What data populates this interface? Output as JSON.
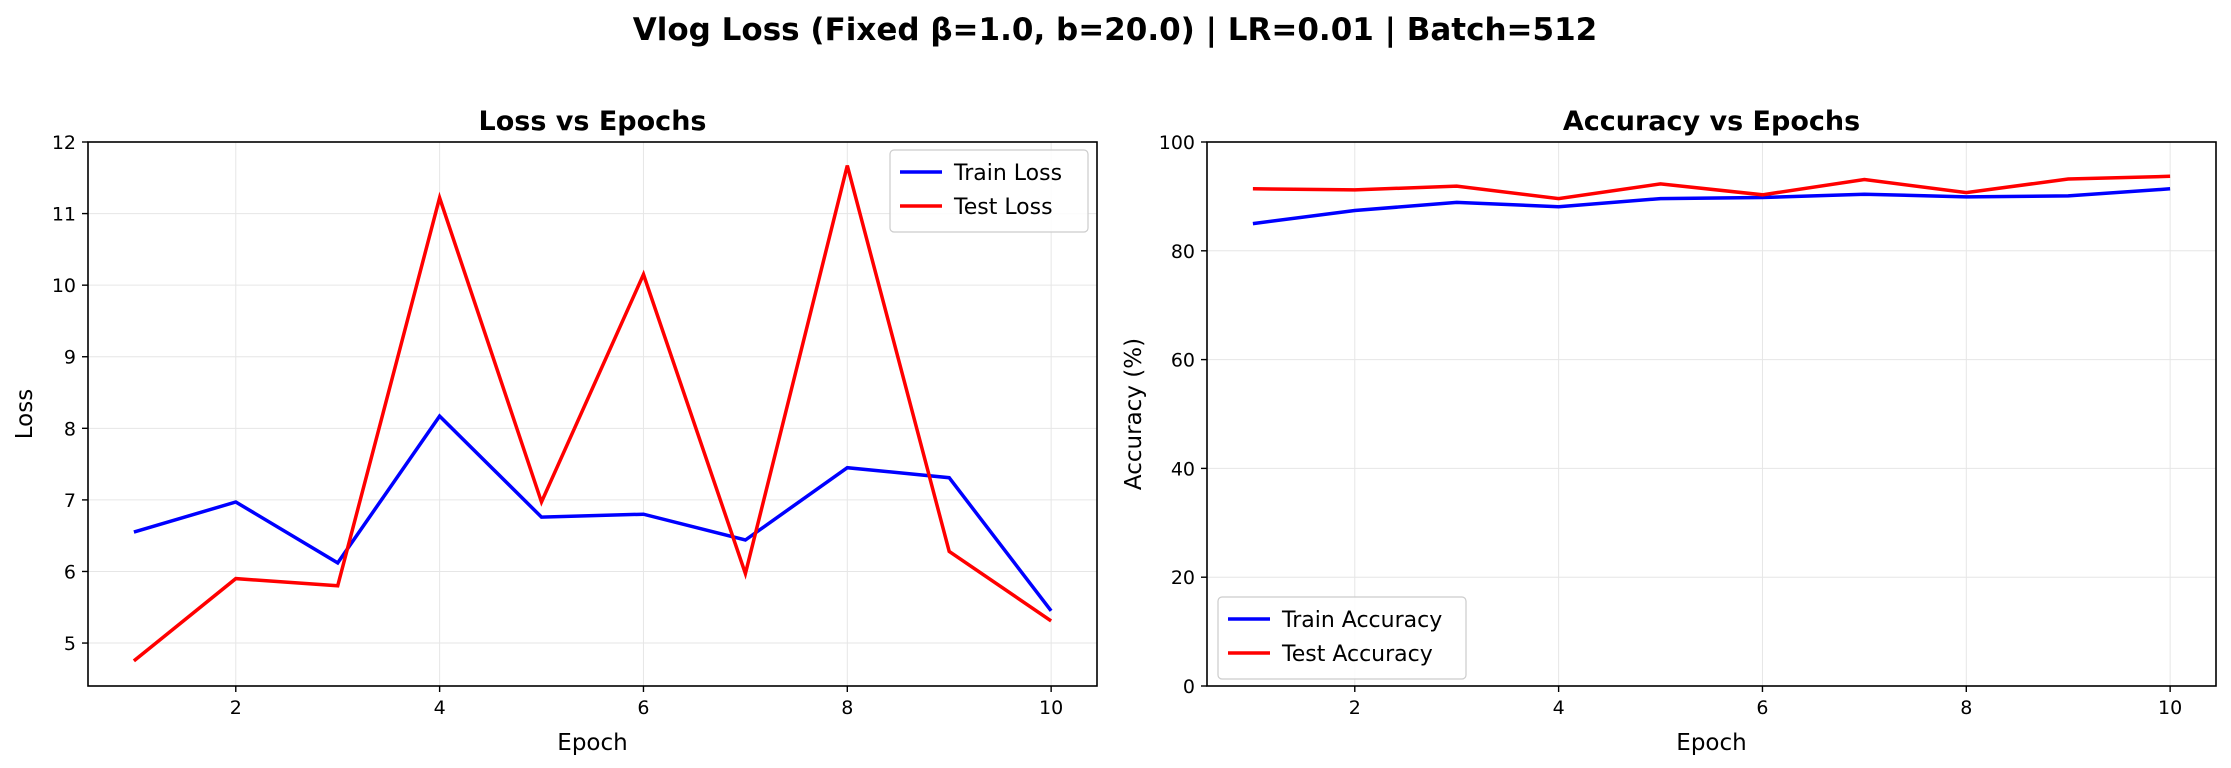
{
  "figure": {
    "suptitle": "Vlog Loss (Fixed β=1.0, b=20.0) | LR=0.01 | Batch=512"
  },
  "chart_data": [
    {
      "type": "line",
      "title": "Loss vs Epochs",
      "xlabel": "Epoch",
      "ylabel": "Loss",
      "xlim": [
        0.55,
        10.45
      ],
      "ylim": [
        4.4,
        12
      ],
      "xticks": [
        2,
        4,
        6,
        8,
        10
      ],
      "yticks": [
        5,
        6,
        7,
        8,
        9,
        10,
        11,
        12
      ],
      "grid": true,
      "legend_position": "upper right",
      "x": [
        1,
        2,
        3,
        4,
        5,
        6,
        7,
        8,
        9,
        10
      ],
      "series": [
        {
          "name": "Train Loss",
          "color": "#0000ff",
          "values": [
            6.55,
            6.97,
            6.12,
            8.17,
            6.76,
            6.8,
            6.44,
            7.45,
            7.31,
            5.45
          ]
        },
        {
          "name": "Test Loss",
          "color": "#ff0000",
          "values": [
            4.75,
            5.9,
            5.8,
            11.22,
            6.97,
            10.15,
            5.97,
            11.67,
            6.28,
            5.31
          ]
        }
      ]
    },
    {
      "type": "line",
      "title": "Accuracy vs Epochs",
      "xlabel": "Epoch",
      "ylabel": "Accuracy (%)",
      "xlim": [
        0.55,
        10.45
      ],
      "ylim": [
        0,
        100
      ],
      "xticks": [
        2,
        4,
        6,
        8,
        10
      ],
      "yticks": [
        0,
        20,
        40,
        60,
        80,
        100
      ],
      "grid": true,
      "legend_position": "lower left",
      "x": [
        1,
        2,
        3,
        4,
        5,
        6,
        7,
        8,
        9,
        10
      ],
      "series": [
        {
          "name": "Train Accuracy",
          "color": "#0000ff",
          "values": [
            85.0,
            87.4,
            88.9,
            88.1,
            89.6,
            89.8,
            90.4,
            89.9,
            90.1,
            91.4
          ]
        },
        {
          "name": "Test Accuracy",
          "color": "#ff0000",
          "values": [
            91.4,
            91.2,
            91.9,
            89.6,
            92.3,
            90.3,
            93.1,
            90.7,
            93.2,
            93.7
          ]
        }
      ]
    }
  ]
}
